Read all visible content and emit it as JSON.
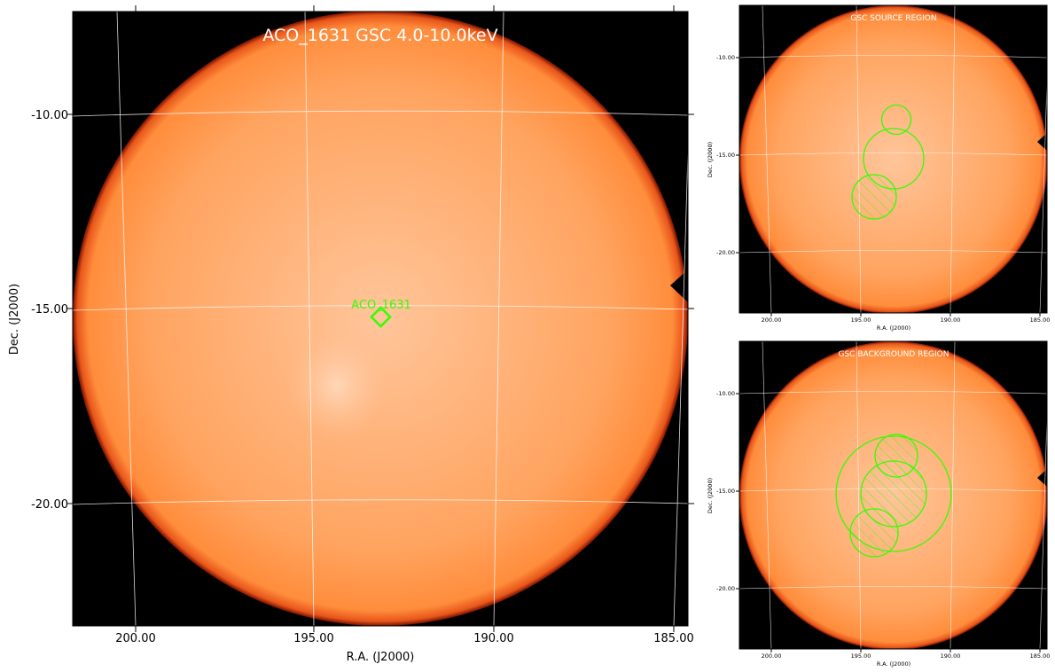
{
  "main": {
    "title": "ACO_1631 GSC 4.0-10.0keV",
    "xlabel": "R.A. (J2000)",
    "ylabel": "Dec. (J2000)",
    "x_ticks": [
      "200.00",
      "195.00",
      "190.00",
      "185.00"
    ],
    "y_ticks": [
      "-10.00",
      "-15.00",
      "-20.00"
    ],
    "marker_label": "ACO_1631"
  },
  "source_panel": {
    "title": "GSC SOURCE REGION",
    "xlabel": "R.A. (J2000)",
    "ylabel": "Dec. (J2000)",
    "x_ticks": [
      "200.00",
      "195.00",
      "190.00",
      "185.00"
    ],
    "y_ticks": [
      "-10.00",
      "-15.00",
      "-20.00"
    ]
  },
  "background_panel": {
    "title": "GSC BACKGROUND REGION",
    "xlabel": "R.A. (J2000)",
    "ylabel": "Dec. (J2000)",
    "x_ticks": [
      "200.00",
      "195.00",
      "190.00",
      "185.00"
    ],
    "y_ticks": [
      "-10.00",
      "-15.00",
      "-20.00"
    ]
  },
  "colors": {
    "region_green": "#33ff00",
    "disk_orange": "#ff9a4e",
    "disk_edge": "#8a1a00",
    "sky_black": "#000000",
    "grid_white": "#ffffff",
    "title_white": "#ffffff"
  }
}
